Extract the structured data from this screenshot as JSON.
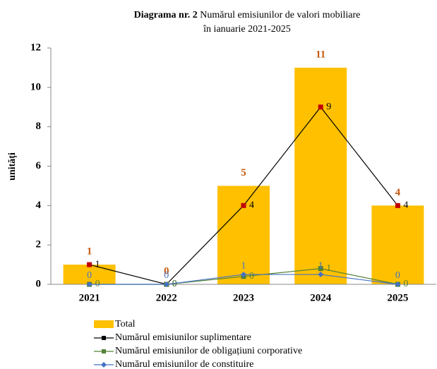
{
  "chart_data": {
    "type": "bar_line",
    "title_label": "Diagrama nr. 2",
    "title_lines": [
      "Numărul emisiunilor de valori mobiliare",
      "în ianuarie 2021-2025"
    ],
    "y_label": "unități",
    "categories": [
      "2021",
      "2022",
      "2023",
      "2024",
      "2025"
    ],
    "ylim": [
      0,
      12
    ],
    "yticks": [
      0,
      2,
      4,
      6,
      8,
      10,
      12
    ],
    "series": [
      {
        "name": "Total",
        "kind": "bar",
        "color": "#ffc000",
        "label_color": "#c55a11",
        "values": [
          1,
          0,
          5,
          11,
          4
        ]
      },
      {
        "name": "Numărul emisiunilor suplimentare",
        "kind": "line",
        "color": "#000000",
        "marker_color": "#c00000",
        "marker": "square",
        "values": [
          1,
          0,
          4,
          9,
          4
        ]
      },
      {
        "name": "Numărul emisiunilor de obligațiuni  corporative",
        "kind": "line",
        "color": "#548235",
        "marker_color": "#548235",
        "marker": "square",
        "values": [
          0,
          0,
          0.4,
          0.8,
          0
        ],
        "value_labels": [
          "0",
          "0",
          "0",
          "1",
          "0"
        ]
      },
      {
        "name": "Numărul emisiunilor de constituire",
        "kind": "line",
        "color": "#4472c4",
        "marker_color": "#4472c4",
        "marker": "diamond",
        "values": [
          0,
          0,
          0.5,
          0.5,
          0
        ],
        "value_labels": [
          "0",
          "0",
          "1",
          "1",
          "0"
        ]
      }
    ]
  }
}
